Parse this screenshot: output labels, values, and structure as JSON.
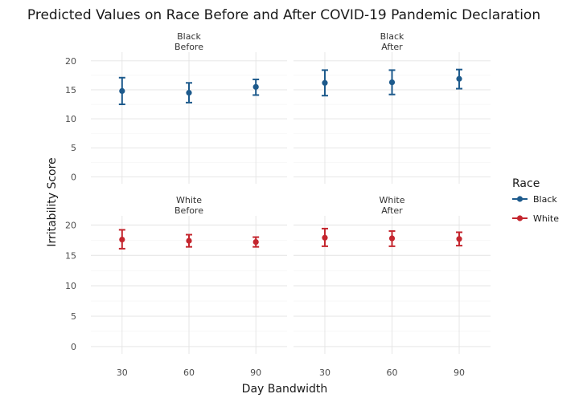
{
  "chart_data": {
    "type": "scatter",
    "title": "Predicted Values on Race Before and After COVID-19 Pandemic Declaration",
    "xlabel": "Day Bandwidth",
    "ylabel": "Irritability Score",
    "x_ticks": [
      30,
      60,
      90
    ],
    "y_ticks": [
      0,
      5,
      10,
      15,
      20
    ],
    "xlim": [
      16,
      104
    ],
    "ylim": [
      -1.2,
      21.5
    ],
    "grid": true,
    "legend": {
      "title": "Race",
      "position": "right",
      "items": [
        {
          "label": "Black",
          "color": "#1d5a8c"
        },
        {
          "label": "White",
          "color": "#c4262e"
        }
      ]
    },
    "panels": [
      {
        "race": "Black",
        "period": "Before",
        "color": "#1d5a8c",
        "points": [
          {
            "x": 30,
            "y": 14.8,
            "ymin": 12.5,
            "ymax": 17.1
          },
          {
            "x": 60,
            "y": 14.5,
            "ymin": 12.8,
            "ymax": 16.2
          },
          {
            "x": 90,
            "y": 15.5,
            "ymin": 14.1,
            "ymax": 16.8
          }
        ]
      },
      {
        "race": "Black",
        "period": "After",
        "color": "#1d5a8c",
        "points": [
          {
            "x": 30,
            "y": 16.2,
            "ymin": 14.0,
            "ymax": 18.4
          },
          {
            "x": 60,
            "y": 16.3,
            "ymin": 14.2,
            "ymax": 18.4
          },
          {
            "x": 90,
            "y": 16.9,
            "ymin": 15.2,
            "ymax": 18.5
          }
        ]
      },
      {
        "race": "White",
        "period": "Before",
        "color": "#c4262e",
        "points": [
          {
            "x": 30,
            "y": 17.6,
            "ymin": 16.1,
            "ymax": 19.2
          },
          {
            "x": 60,
            "y": 17.4,
            "ymin": 16.4,
            "ymax": 18.4
          },
          {
            "x": 90,
            "y": 17.2,
            "ymin": 16.4,
            "ymax": 18.0
          }
        ]
      },
      {
        "race": "White",
        "period": "After",
        "color": "#c4262e",
        "points": [
          {
            "x": 30,
            "y": 17.9,
            "ymin": 16.5,
            "ymax": 19.4
          },
          {
            "x": 60,
            "y": 17.8,
            "ymin": 16.5,
            "ymax": 19.0
          },
          {
            "x": 90,
            "y": 17.7,
            "ymin": 16.6,
            "ymax": 18.8
          }
        ]
      }
    ]
  }
}
